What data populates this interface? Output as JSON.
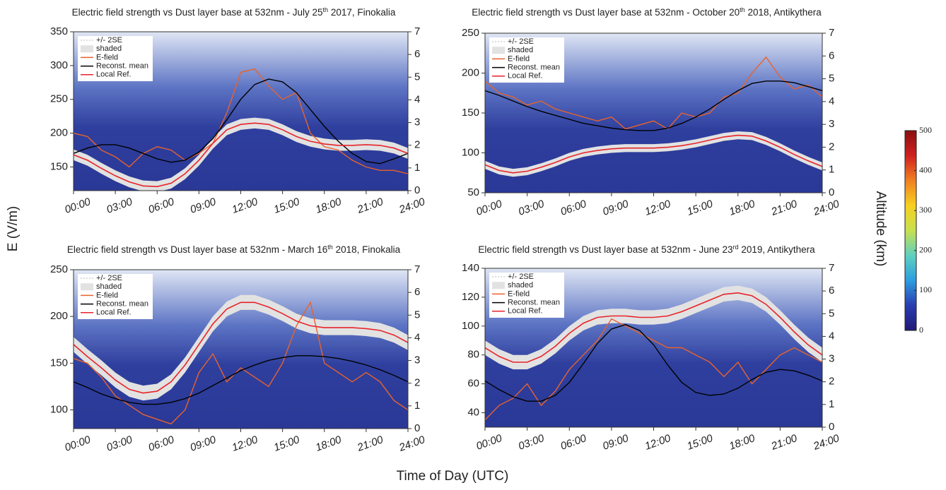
{
  "figure": {
    "ylabel": "E (V/m)",
    "y2label": "Altitude (km)",
    "xlabel": "Time of Day (UTC)"
  },
  "chart_data": [
    {
      "type": "line",
      "title": [
        "Electric field strength vs Dust layer base at 532nm - July 25",
        "th",
        " 2017, Finokalia"
      ],
      "x": [
        0,
        1,
        2,
        3,
        4,
        5,
        6,
        7,
        8,
        9,
        10,
        11,
        12,
        13,
        14,
        15,
        16,
        17,
        18,
        19,
        20,
        21,
        22,
        23,
        24
      ],
      "xlim": [
        0,
        24
      ],
      "xticks": [
        {
          "value": 0,
          "label": "00:00"
        },
        {
          "value": 3,
          "label": "03:00"
        },
        {
          "value": 6,
          "label": "06:00"
        },
        {
          "value": 9,
          "label": "09:00"
        },
        {
          "value": 12,
          "label": "12:00"
        },
        {
          "value": 15,
          "label": "15:00"
        },
        {
          "value": 18,
          "label": "18:00"
        },
        {
          "value": 21,
          "label": "21:00"
        },
        {
          "value": 24,
          "label": "24:00"
        }
      ],
      "ylim": [
        115,
        350
      ],
      "yticks": [
        150,
        200,
        250,
        300,
        350
      ],
      "y2lim": [
        0,
        7
      ],
      "y2ticks": [
        0,
        1,
        2,
        3,
        4,
        5,
        6,
        7
      ],
      "band": {
        "names": [
          "+/- 2SE",
          "shaded"
        ],
        "color": "#e2e2e2",
        "error": 8
      },
      "series": [
        {
          "name": "E-field",
          "color": "#e8622c",
          "values": [
            200,
            195,
            175,
            165,
            150,
            170,
            180,
            175,
            160,
            170,
            185,
            230,
            290,
            295,
            270,
            250,
            260,
            200,
            180,
            175,
            160,
            150,
            145,
            145,
            140
          ]
        },
        {
          "name": "Reconst. mean",
          "color": "#000000",
          "values": [
            170,
            178,
            183,
            183,
            178,
            170,
            162,
            157,
            160,
            172,
            192,
            220,
            250,
            272,
            280,
            276,
            260,
            235,
            210,
            188,
            170,
            158,
            155,
            162,
            170
          ]
        },
        {
          "name": "Local Ref.",
          "color": "#e8232a",
          "band": true,
          "values": [
            168,
            160,
            148,
            137,
            128,
            122,
            121,
            126,
            140,
            160,
            185,
            205,
            213,
            215,
            213,
            205,
            195,
            188,
            184,
            182,
            182,
            183,
            182,
            178,
            170
          ]
        }
      ]
    },
    {
      "type": "line",
      "title": [
        "Electric field strength vs Dust layer base at 532nm - October 20",
        "th",
        " 2018, Antikythera"
      ],
      "x": [
        0,
        1,
        2,
        3,
        4,
        5,
        6,
        7,
        8,
        9,
        10,
        11,
        12,
        13,
        14,
        15,
        16,
        17,
        18,
        19,
        20,
        21,
        22,
        23,
        24
      ],
      "xlim": [
        0,
        24
      ],
      "xticks": [
        {
          "value": 0,
          "label": "00:00"
        },
        {
          "value": 3,
          "label": "03:00"
        },
        {
          "value": 6,
          "label": "06:00"
        },
        {
          "value": 9,
          "label": "09:00"
        },
        {
          "value": 12,
          "label": "12:00"
        },
        {
          "value": 15,
          "label": "15:00"
        },
        {
          "value": 18,
          "label": "18:00"
        },
        {
          "value": 21,
          "label": "21:00"
        },
        {
          "value": 24,
          "label": "24:00"
        }
      ],
      "ylim": [
        50,
        250
      ],
      "yticks": [
        50,
        100,
        150,
        200,
        250
      ],
      "y2lim": [
        0,
        7
      ],
      "y2ticks": [
        0,
        1,
        2,
        3,
        4,
        5,
        6,
        7
      ],
      "band": {
        "names": [
          "+/- 2SE",
          "shaded"
        ],
        "color": "#e2e2e2",
        "error": 5
      },
      "series": [
        {
          "name": "E-field",
          "color": "#e8622c",
          "values": [
            190,
            175,
            170,
            160,
            165,
            155,
            150,
            145,
            140,
            145,
            130,
            135,
            140,
            130,
            150,
            145,
            150,
            170,
            175,
            200,
            220,
            195,
            180,
            185,
            170
          ]
        },
        {
          "name": "Reconst. mean",
          "color": "#000000",
          "values": [
            178,
            172,
            165,
            158,
            152,
            147,
            142,
            137,
            134,
            131,
            129,
            128,
            128,
            131,
            137,
            145,
            155,
            167,
            178,
            187,
            190,
            190,
            188,
            183,
            178
          ]
        },
        {
          "name": "Local Ref.",
          "color": "#e8232a",
          "band": true,
          "values": [
            85,
            78,
            75,
            77,
            82,
            88,
            95,
            100,
            103,
            105,
            106,
            106,
            106,
            107,
            109,
            112,
            116,
            120,
            122,
            121,
            115,
            107,
            98,
            90,
            83
          ]
        }
      ]
    },
    {
      "type": "line",
      "title": [
        "Electric field strength vs Dust layer base at 532nm - March 16",
        "th",
        " 2018, Finokalia"
      ],
      "x": [
        0,
        1,
        2,
        3,
        4,
        5,
        6,
        7,
        8,
        9,
        10,
        11,
        12,
        13,
        14,
        15,
        16,
        17,
        18,
        19,
        20,
        21,
        22,
        23,
        24
      ],
      "xlim": [
        0,
        24
      ],
      "xticks": [
        {
          "value": 0,
          "label": "00:00"
        },
        {
          "value": 3,
          "label": "03:00"
        },
        {
          "value": 6,
          "label": "06:00"
        },
        {
          "value": 9,
          "label": "09:00"
        },
        {
          "value": 12,
          "label": "12:00"
        },
        {
          "value": 15,
          "label": "15:00"
        },
        {
          "value": 18,
          "label": "18:00"
        },
        {
          "value": 21,
          "label": "21:00"
        },
        {
          "value": 24,
          "label": "24:00"
        }
      ],
      "ylim": [
        80,
        250
      ],
      "yticks": [
        100,
        150,
        200,
        250
      ],
      "y2lim": [
        0,
        7
      ],
      "y2ticks": [
        0,
        1,
        2,
        3,
        4,
        5,
        6,
        7
      ],
      "band": {
        "names": [
          "+/- 2SE",
          "shaded"
        ],
        "color": "#e2e2e2",
        "error": 8
      },
      "series": [
        {
          "name": "E-field",
          "color": "#e8622c",
          "values": [
            155,
            150,
            135,
            115,
            105,
            95,
            90,
            85,
            100,
            140,
            160,
            130,
            145,
            135,
            125,
            150,
            190,
            215,
            150,
            140,
            130,
            140,
            130,
            110,
            100
          ]
        },
        {
          "name": "Reconst. mean",
          "color": "#000000",
          "values": [
            130,
            124,
            117,
            112,
            108,
            106,
            106,
            108,
            112,
            118,
            126,
            134,
            142,
            148,
            153,
            156,
            158,
            158,
            157,
            155,
            152,
            148,
            143,
            137,
            130
          ]
        },
        {
          "name": "Local Ref.",
          "color": "#e8232a",
          "band": true,
          "values": [
            170,
            157,
            145,
            132,
            122,
            118,
            120,
            130,
            148,
            170,
            192,
            208,
            215,
            215,
            210,
            203,
            195,
            190,
            188,
            188,
            188,
            187,
            185,
            180,
            172
          ]
        }
      ]
    },
    {
      "type": "line",
      "title": [
        "Electric field strength vs Dust layer base at 532nm - June 23",
        "rd",
        " 2019, Antikythera"
      ],
      "x": [
        0,
        1,
        2,
        3,
        4,
        5,
        6,
        7,
        8,
        9,
        10,
        11,
        12,
        13,
        14,
        15,
        16,
        17,
        18,
        19,
        20,
        21,
        22,
        23,
        24
      ],
      "xlim": [
        0,
        24
      ],
      "xticks": [
        {
          "value": 0,
          "label": "00:00"
        },
        {
          "value": 3,
          "label": "03:00"
        },
        {
          "value": 6,
          "label": "06:00"
        },
        {
          "value": 9,
          "label": "09:00"
        },
        {
          "value": 12,
          "label": "12:00"
        },
        {
          "value": 15,
          "label": "15:00"
        },
        {
          "value": 18,
          "label": "18:00"
        },
        {
          "value": 21,
          "label": "21:00"
        },
        {
          "value": 24,
          "label": "24:00"
        }
      ],
      "ylim": [
        30,
        140
      ],
      "yticks": [
        40,
        60,
        80,
        100,
        120,
        140
      ],
      "y2lim": [
        0,
        7
      ],
      "y2ticks": [
        0,
        1,
        2,
        3,
        4,
        5,
        6,
        7
      ],
      "band": {
        "names": [
          "+/- 2SE",
          "shaded"
        ],
        "color": "#e2e2e2",
        "error": 5
      },
      "series": [
        {
          "name": "E-field",
          "color": "#e8622c",
          "values": [
            35,
            45,
            50,
            60,
            45,
            55,
            70,
            80,
            90,
            105,
            100,
            95,
            90,
            85,
            85,
            80,
            75,
            65,
            75,
            60,
            70,
            80,
            85,
            80,
            75
          ]
        },
        {
          "name": "Reconst. mean",
          "color": "#000000",
          "values": [
            62,
            56,
            51,
            48,
            48,
            52,
            61,
            74,
            88,
            98,
            101,
            97,
            87,
            73,
            61,
            54,
            52,
            53,
            57,
            63,
            68,
            70,
            69,
            66,
            62
          ]
        },
        {
          "name": "Local Ref.",
          "color": "#e8232a",
          "band": true,
          "values": [
            85,
            79,
            75,
            75,
            79,
            86,
            95,
            102,
            106,
            107,
            107,
            106,
            106,
            107,
            110,
            114,
            118,
            122,
            123,
            121,
            115,
            106,
            96,
            87,
            80
          ]
        }
      ]
    },
    {
      "type": "colorbar",
      "clim": [
        0,
        500
      ],
      "cticks": [
        0,
        100,
        200,
        300,
        400,
        500
      ],
      "colors": [
        "#1e1a78",
        "#2a3cb0",
        "#2c9de0",
        "#5fd0c0",
        "#c8e050",
        "#f6d020",
        "#f08020",
        "#d02020",
        "#8a1010"
      ]
    }
  ]
}
